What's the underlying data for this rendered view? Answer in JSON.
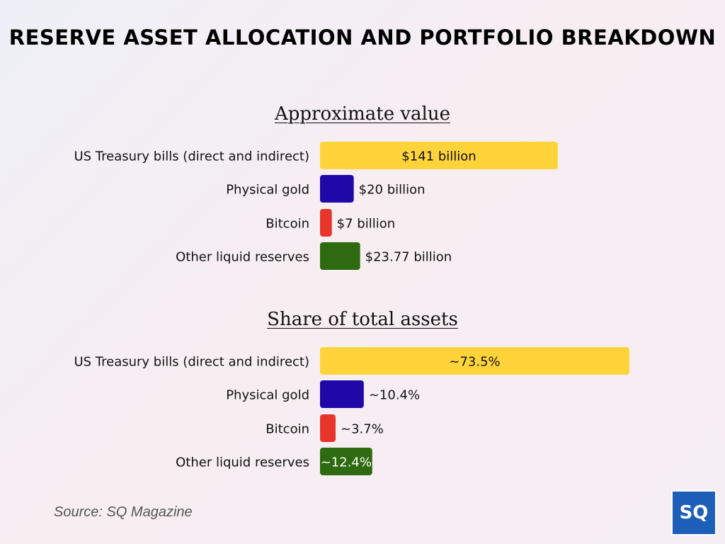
{
  "title": "RESERVE ASSET ALLOCATION AND PORTFOLIO BREAKDOWN",
  "source": "Source: SQ Magazine",
  "logo": "SQ",
  "chart_data": [
    {
      "type": "bar",
      "orientation": "horizontal",
      "title": "Approximate value",
      "categories": [
        "US Treasury bills (direct and indirect)",
        "Physical gold",
        "Bitcoin",
        "Other liquid reserves"
      ],
      "values": [
        141,
        20,
        7,
        23.77
      ],
      "unit": "billion USD",
      "labels": [
        "$141 billion",
        "$20 billion",
        "$7 billion",
        "$23.77 billion"
      ],
      "colors": [
        "#ffd43b",
        "#1f08a8",
        "#e8352b",
        "#2e6a0f"
      ],
      "label_inside": [
        true,
        false,
        false,
        false
      ],
      "xlim": [
        0,
        141
      ]
    },
    {
      "type": "bar",
      "orientation": "horizontal",
      "title": "Share of total assets",
      "categories": [
        "US Treasury bills (direct and indirect)",
        "Physical gold",
        "Bitcoin",
        "Other liquid reserves"
      ],
      "values": [
        73.5,
        10.4,
        3.7,
        12.4
      ],
      "unit": "%",
      "labels": [
        "~73.5%",
        "~10.4%",
        "~3.7%",
        "~12.4%"
      ],
      "colors": [
        "#ffd43b",
        "#1f08a8",
        "#e8352b",
        "#2e6a0f"
      ],
      "label_inside": [
        true,
        false,
        false,
        true
      ],
      "xlim": [
        0,
        73.5
      ]
    }
  ]
}
